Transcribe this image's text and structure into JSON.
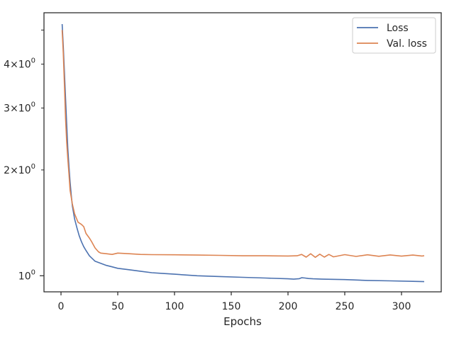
{
  "chart_data": {
    "type": "line",
    "title": "",
    "xlabel": "Epochs",
    "ylabel": "",
    "yscale": "log",
    "grid": false,
    "legend_position": "top-right",
    "xlim": [
      -15,
      335
    ],
    "ylim": [
      0.9,
      5.6
    ],
    "x_ticks": [
      0,
      50,
      100,
      150,
      200,
      250,
      300
    ],
    "x_tick_labels": [
      "0",
      "50",
      "100",
      "150",
      "200",
      "250",
      "300"
    ],
    "y_major_ticks": [
      1
    ],
    "y_minor_ticks": [
      2,
      3,
      4,
      5
    ],
    "y_tick_labels": [
      {
        "value": 1,
        "label": "10⁰",
        "base": "10",
        "exp": "0"
      },
      {
        "value": 2,
        "label": "2×10⁰",
        "base": "2×10",
        "exp": "0"
      },
      {
        "value": 3,
        "label": "3×10⁰",
        "base": "3×10",
        "exp": "0"
      },
      {
        "value": 4,
        "label": "4×10⁰",
        "base": "4×10",
        "exp": "0"
      }
    ],
    "series": [
      {
        "name": "Loss",
        "color": "#4c72b0",
        "x": [
          1,
          2,
          3,
          4,
          5,
          6,
          7,
          8,
          9,
          10,
          12,
          14,
          16,
          18,
          20,
          22,
          25,
          30,
          35,
          40,
          45,
          50,
          60,
          70,
          80,
          90,
          100,
          120,
          140,
          160,
          180,
          200,
          205,
          210,
          212,
          215,
          218,
          222,
          230,
          250,
          270,
          290,
          310,
          320
        ],
        "y": [
          5.2,
          4.5,
          3.8,
          3.2,
          2.7,
          2.3,
          2.05,
          1.85,
          1.7,
          1.58,
          1.45,
          1.37,
          1.3,
          1.25,
          1.21,
          1.18,
          1.14,
          1.1,
          1.085,
          1.07,
          1.06,
          1.05,
          1.04,
          1.03,
          1.02,
          1.015,
          1.01,
          1.0,
          0.995,
          0.99,
          0.985,
          0.98,
          0.978,
          0.981,
          0.987,
          0.985,
          0.982,
          0.98,
          0.978,
          0.975,
          0.97,
          0.967,
          0.964,
          0.962
        ]
      },
      {
        "name": "Val. loss",
        "color": "#dd8452",
        "x": [
          1,
          2,
          3,
          4,
          5,
          6,
          7,
          8,
          10,
          12,
          15,
          18,
          20,
          22,
          25,
          27,
          30,
          33,
          35,
          40,
          45,
          50,
          60,
          70,
          80,
          100,
          120,
          140,
          160,
          180,
          200,
          208,
          212,
          216,
          220,
          224,
          228,
          232,
          236,
          240,
          250,
          260,
          270,
          280,
          290,
          300,
          310,
          318,
          320
        ],
        "y": [
          5.0,
          4.3,
          3.5,
          2.8,
          2.4,
          2.15,
          1.95,
          1.75,
          1.6,
          1.5,
          1.42,
          1.4,
          1.38,
          1.32,
          1.28,
          1.25,
          1.2,
          1.17,
          1.16,
          1.155,
          1.15,
          1.16,
          1.155,
          1.15,
          1.148,
          1.147,
          1.145,
          1.143,
          1.14,
          1.14,
          1.138,
          1.14,
          1.15,
          1.13,
          1.155,
          1.128,
          1.152,
          1.13,
          1.15,
          1.132,
          1.148,
          1.135,
          1.147,
          1.136,
          1.146,
          1.137,
          1.145,
          1.138,
          1.14
        ]
      }
    ]
  }
}
